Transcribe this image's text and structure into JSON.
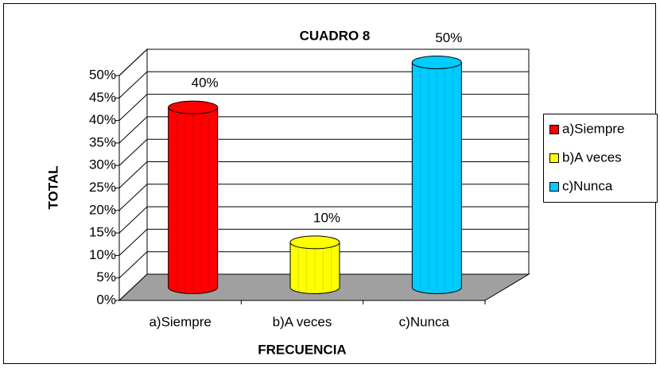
{
  "chart_data": {
    "type": "bar3d",
    "title": "CUADRO 8",
    "y_label": "TOTAL",
    "x_label": "FRECUENCIA",
    "categories": [
      "a)Siempre",
      "b)A veces",
      "c)Nunca"
    ],
    "values": [
      40,
      10,
      50
    ],
    "value_labels": [
      "40%",
      "10%",
      "50%"
    ],
    "colors": [
      "#ff0000",
      "#ffff00",
      "#00ccff"
    ],
    "ylim": [
      0,
      50
    ],
    "yticks": [
      {
        "value": 0,
        "label": "0%"
      },
      {
        "value": 5,
        "label": "5%"
      },
      {
        "value": 10,
        "label": "10%"
      },
      {
        "value": 15,
        "label": "15%"
      },
      {
        "value": 20,
        "label": "20%"
      },
      {
        "value": 25,
        "label": "25%"
      },
      {
        "value": 30,
        "label": "30%"
      },
      {
        "value": 35,
        "label": "35%"
      },
      {
        "value": 40,
        "label": "40%"
      },
      {
        "value": 45,
        "label": "45%"
      },
      {
        "value": 50,
        "label": "50%"
      }
    ],
    "grid": true,
    "legend": "right"
  }
}
